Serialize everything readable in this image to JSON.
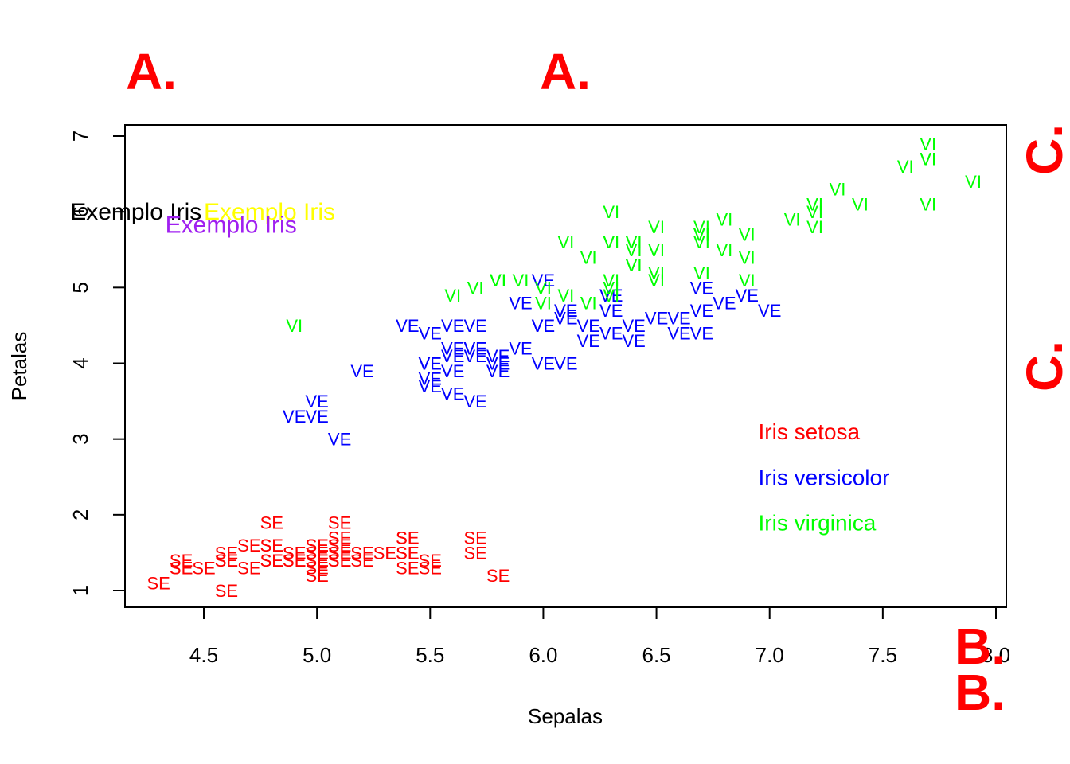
{
  "chart_data": {
    "type": "scatter",
    "title": "",
    "xlabel": "Sepalas",
    "ylabel": "Petalas",
    "xlim": [
      4.2,
      8.0
    ],
    "ylim": [
      0.8,
      7.2
    ],
    "x_ticks": [
      4.5,
      5.0,
      5.5,
      6.0,
      6.5,
      7.0,
      7.5,
      8.0
    ],
    "x_tick_labels": [
      "4.5",
      "5.0",
      "5.5",
      "6.0",
      "6.5",
      "7.0",
      "7.5",
      "8.0"
    ],
    "y_ticks": [
      1,
      2,
      3,
      4,
      5,
      6,
      7
    ],
    "y_tick_labels": [
      "1",
      "2",
      "3",
      "4",
      "5",
      "6",
      "7"
    ],
    "grid": false,
    "legend_position": "lower-right",
    "series": [
      {
        "name": "Iris setosa",
        "marker_label": "SE",
        "color": "#ff0000",
        "points": [
          [
            5.1,
            1.4
          ],
          [
            4.9,
            1.4
          ],
          [
            4.7,
            1.3
          ],
          [
            4.6,
            1.5
          ],
          [
            5.0,
            1.4
          ],
          [
            5.4,
            1.7
          ],
          [
            4.6,
            1.4
          ],
          [
            5.0,
            1.5
          ],
          [
            4.4,
            1.4
          ],
          [
            4.9,
            1.5
          ],
          [
            5.4,
            1.5
          ],
          [
            4.8,
            1.6
          ],
          [
            4.8,
            1.4
          ],
          [
            4.3,
            1.1
          ],
          [
            5.8,
            1.2
          ],
          [
            5.7,
            1.5
          ],
          [
            5.4,
            1.3
          ],
          [
            5.1,
            1.4
          ],
          [
            5.7,
            1.7
          ],
          [
            5.1,
            1.5
          ],
          [
            5.4,
            1.7
          ],
          [
            5.1,
            1.5
          ],
          [
            4.6,
            1.0
          ],
          [
            5.1,
            1.7
          ],
          [
            4.8,
            1.9
          ],
          [
            5.0,
            1.6
          ],
          [
            5.0,
            1.6
          ],
          [
            5.2,
            1.5
          ],
          [
            5.2,
            1.4
          ],
          [
            4.7,
            1.6
          ],
          [
            4.8,
            1.6
          ],
          [
            5.4,
            1.5
          ],
          [
            5.2,
            1.5
          ],
          [
            5.5,
            1.4
          ],
          [
            4.9,
            1.5
          ],
          [
            5.0,
            1.2
          ],
          [
            5.5,
            1.3
          ],
          [
            4.9,
            1.4
          ],
          [
            4.4,
            1.3
          ],
          [
            5.1,
            1.5
          ],
          [
            5.0,
            1.3
          ],
          [
            4.5,
            1.3
          ],
          [
            4.4,
            1.3
          ],
          [
            5.0,
            1.6
          ],
          [
            5.1,
            1.9
          ],
          [
            4.8,
            1.4
          ],
          [
            5.1,
            1.6
          ],
          [
            4.6,
            1.4
          ],
          [
            5.3,
            1.5
          ],
          [
            5.0,
            1.4
          ]
        ]
      },
      {
        "name": "Iris versicolor",
        "marker_label": "VE",
        "color": "#0000ff",
        "points": [
          [
            7.0,
            4.7
          ],
          [
            6.4,
            4.5
          ],
          [
            6.9,
            4.9
          ],
          [
            5.5,
            4.0
          ],
          [
            6.5,
            4.6
          ],
          [
            5.7,
            4.5
          ],
          [
            6.3,
            4.7
          ],
          [
            4.9,
            3.3
          ],
          [
            6.6,
            4.6
          ],
          [
            5.2,
            3.9
          ],
          [
            5.0,
            3.5
          ],
          [
            5.9,
            4.2
          ],
          [
            6.0,
            4.0
          ],
          [
            6.1,
            4.7
          ],
          [
            5.6,
            3.6
          ],
          [
            6.7,
            4.4
          ],
          [
            5.6,
            4.5
          ],
          [
            5.8,
            4.1
          ],
          [
            6.2,
            4.5
          ],
          [
            5.6,
            3.9
          ],
          [
            5.9,
            4.8
          ],
          [
            6.1,
            4.0
          ],
          [
            6.3,
            4.9
          ],
          [
            6.1,
            4.7
          ],
          [
            6.4,
            4.3
          ],
          [
            6.6,
            4.4
          ],
          [
            6.8,
            4.8
          ],
          [
            6.7,
            5.0
          ],
          [
            6.0,
            4.5
          ],
          [
            5.7,
            3.5
          ],
          [
            5.5,
            3.8
          ],
          [
            5.5,
            3.7
          ],
          [
            5.8,
            3.9
          ],
          [
            6.0,
            5.1
          ],
          [
            5.4,
            4.5
          ],
          [
            6.0,
            4.5
          ],
          [
            6.7,
            4.7
          ],
          [
            6.3,
            4.4
          ],
          [
            5.6,
            4.1
          ],
          [
            5.5,
            4.0
          ],
          [
            5.5,
            4.4
          ],
          [
            6.1,
            4.6
          ],
          [
            5.8,
            4.0
          ],
          [
            5.0,
            3.3
          ],
          [
            5.6,
            4.2
          ],
          [
            5.7,
            4.2
          ],
          [
            5.7,
            4.2
          ],
          [
            6.2,
            4.3
          ],
          [
            5.1,
            3.0
          ],
          [
            5.7,
            4.1
          ]
        ]
      },
      {
        "name": "Iris virginica",
        "marker_label": "VI",
        "color": "#00ff00",
        "points": [
          [
            6.3,
            6.0
          ],
          [
            5.8,
            5.1
          ],
          [
            7.1,
            5.9
          ],
          [
            6.3,
            5.6
          ],
          [
            6.5,
            5.8
          ],
          [
            7.6,
            6.6
          ],
          [
            4.9,
            4.5
          ],
          [
            7.3,
            6.3
          ],
          [
            6.7,
            5.8
          ],
          [
            7.2,
            6.1
          ],
          [
            6.5,
            5.1
          ],
          [
            6.4,
            5.3
          ],
          [
            6.8,
            5.5
          ],
          [
            5.7,
            5.0
          ],
          [
            5.8,
            5.1
          ],
          [
            6.4,
            5.3
          ],
          [
            6.5,
            5.5
          ],
          [
            7.7,
            6.7
          ],
          [
            7.7,
            6.9
          ],
          [
            6.0,
            5.0
          ],
          [
            6.9,
            5.7
          ],
          [
            5.6,
            4.9
          ],
          [
            7.7,
            6.7
          ],
          [
            6.3,
            4.9
          ],
          [
            6.7,
            5.7
          ],
          [
            7.2,
            6.0
          ],
          [
            6.2,
            4.8
          ],
          [
            6.1,
            4.9
          ],
          [
            6.4,
            5.6
          ],
          [
            7.2,
            5.8
          ],
          [
            7.4,
            6.1
          ],
          [
            7.9,
            6.4
          ],
          [
            6.4,
            5.6
          ],
          [
            6.3,
            5.1
          ],
          [
            6.1,
            5.6
          ],
          [
            7.7,
            6.1
          ],
          [
            6.3,
            5.6
          ],
          [
            6.4,
            5.5
          ],
          [
            6.0,
            4.8
          ],
          [
            6.9,
            5.4
          ],
          [
            6.7,
            5.6
          ],
          [
            6.9,
            5.1
          ],
          [
            5.8,
            5.1
          ],
          [
            6.8,
            5.9
          ],
          [
            6.7,
            5.7
          ],
          [
            6.7,
            5.2
          ],
          [
            6.3,
            5.0
          ],
          [
            6.5,
            5.2
          ],
          [
            6.2,
            5.4
          ],
          [
            5.9,
            5.1
          ]
        ]
      }
    ],
    "legend": [
      {
        "label": "Iris setosa",
        "color": "#ff0000",
        "x": 6.95,
        "y": 3.1
      },
      {
        "label": "Iris versicolor",
        "color": "#0000ff",
        "x": 6.95,
        "y": 2.5
      },
      {
        "label": "Iris virginica",
        "color": "#00ff00",
        "x": 6.95,
        "y": 1.9
      }
    ],
    "annotations": [
      {
        "text": "Exemplo Iris",
        "color": "#000000",
        "x": 4.2,
        "y": 6.0,
        "anchor": "middle"
      },
      {
        "text": "Exemplo Iris",
        "color": "#ffff00",
        "x": 4.5,
        "y": 6.0,
        "anchor": "start"
      },
      {
        "text": "Exemplo Iris",
        "color": "#a020f0",
        "x": 4.33,
        "y": 5.83,
        "anchor": "start"
      }
    ]
  },
  "margin_letters": [
    {
      "id": "a-left",
      "text": "A."
    },
    {
      "id": "a-center",
      "text": "A."
    },
    {
      "id": "b-upper",
      "text": "B."
    },
    {
      "id": "b-lower",
      "text": "B."
    },
    {
      "id": "c-upper",
      "text": "C."
    },
    {
      "id": "c-lower",
      "text": "C."
    }
  ]
}
